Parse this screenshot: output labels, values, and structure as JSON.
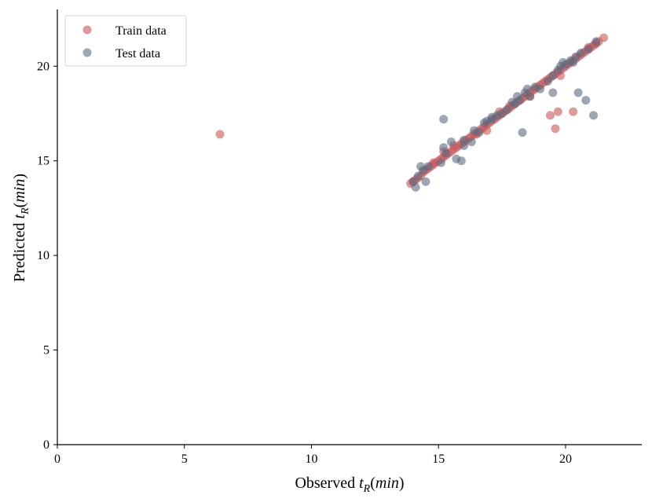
{
  "chart_data": {
    "type": "scatter",
    "xlabel": "Observed t_R(min)",
    "ylabel": "Predicted t_R(min)",
    "xlim": [
      0,
      23
    ],
    "ylim": [
      0,
      23
    ],
    "xticks": [
      0,
      5,
      10,
      15,
      20
    ],
    "yticks": [
      0,
      5,
      10,
      15,
      20
    ],
    "grid": false,
    "legend": "top-left",
    "series": [
      {
        "name": "Train data",
        "color": "#c9565a",
        "points": [
          [
            6.4,
            16.4
          ],
          [
            13.9,
            13.8
          ],
          [
            14.0,
            13.9
          ],
          [
            14.1,
            14.0
          ],
          [
            14.2,
            14.1
          ],
          [
            14.3,
            14.2
          ],
          [
            14.4,
            14.4
          ],
          [
            14.5,
            14.5
          ],
          [
            14.6,
            14.6
          ],
          [
            14.7,
            14.7
          ],
          [
            14.8,
            14.8
          ],
          [
            14.9,
            14.9
          ],
          [
            15.0,
            15.0
          ],
          [
            15.1,
            15.1
          ],
          [
            15.2,
            15.2
          ],
          [
            15.3,
            15.3
          ],
          [
            15.4,
            15.4
          ],
          [
            15.5,
            15.5
          ],
          [
            15.6,
            15.6
          ],
          [
            15.7,
            15.7
          ],
          [
            15.8,
            15.8
          ],
          [
            15.9,
            15.9
          ],
          [
            16.0,
            16.0
          ],
          [
            16.1,
            16.1
          ],
          [
            16.2,
            16.2
          ],
          [
            16.3,
            16.3
          ],
          [
            16.4,
            16.4
          ],
          [
            16.5,
            16.5
          ],
          [
            16.6,
            16.6
          ],
          [
            16.7,
            16.7
          ],
          [
            16.8,
            16.8
          ],
          [
            16.9,
            16.9
          ],
          [
            17.0,
            17.0
          ],
          [
            17.1,
            17.1
          ],
          [
            17.2,
            17.2
          ],
          [
            17.3,
            17.3
          ],
          [
            17.4,
            17.4
          ],
          [
            17.5,
            17.5
          ],
          [
            17.6,
            17.6
          ],
          [
            17.7,
            17.7
          ],
          [
            17.8,
            17.8
          ],
          [
            17.9,
            17.9
          ],
          [
            18.0,
            18.0
          ],
          [
            18.1,
            18.1
          ],
          [
            18.2,
            18.2
          ],
          [
            18.3,
            18.3
          ],
          [
            18.4,
            18.4
          ],
          [
            18.5,
            18.5
          ],
          [
            18.6,
            18.6
          ],
          [
            18.7,
            18.7
          ],
          [
            18.8,
            18.8
          ],
          [
            18.9,
            18.9
          ],
          [
            19.0,
            19.0
          ],
          [
            19.1,
            19.1
          ],
          [
            19.2,
            19.2
          ],
          [
            19.3,
            19.3
          ],
          [
            19.4,
            19.4
          ],
          [
            19.5,
            19.5
          ],
          [
            19.6,
            19.6
          ],
          [
            19.7,
            19.7
          ],
          [
            19.8,
            19.8
          ],
          [
            19.9,
            19.9
          ],
          [
            20.0,
            20.0
          ],
          [
            20.1,
            20.1
          ],
          [
            20.2,
            20.2
          ],
          [
            20.3,
            20.3
          ],
          [
            20.4,
            20.4
          ],
          [
            20.5,
            20.5
          ],
          [
            20.6,
            20.6
          ],
          [
            20.7,
            20.7
          ],
          [
            20.8,
            20.8
          ],
          [
            20.9,
            20.9
          ],
          [
            21.0,
            21.0
          ],
          [
            21.1,
            21.1
          ],
          [
            21.2,
            21.2
          ],
          [
            21.3,
            21.3
          ],
          [
            21.5,
            21.5
          ],
          [
            16.9,
            16.6
          ],
          [
            15.6,
            15.8
          ],
          [
            17.8,
            17.9
          ],
          [
            19.8,
            19.5
          ],
          [
            19.4,
            17.4
          ],
          [
            19.6,
            16.7
          ],
          [
            19.7,
            17.6
          ],
          [
            20.3,
            17.6
          ],
          [
            18.6,
            18.4
          ],
          [
            14.8,
            14.9
          ],
          [
            15.2,
            15.5
          ],
          [
            16.5,
            16.4
          ],
          [
            17.4,
            17.6
          ],
          [
            20.9,
            21.0
          ],
          [
            21.2,
            21.2
          ]
        ]
      },
      {
        "name": "Test data",
        "color": "#5c6b7e",
        "points": [
          [
            14.0,
            13.9
          ],
          [
            14.1,
            13.6
          ],
          [
            14.2,
            14.2
          ],
          [
            14.3,
            14.7
          ],
          [
            14.4,
            14.5
          ],
          [
            14.5,
            13.9
          ],
          [
            14.6,
            14.7
          ],
          [
            15.1,
            14.9
          ],
          [
            15.2,
            17.2
          ],
          [
            15.2,
            15.7
          ],
          [
            15.3,
            15.4
          ],
          [
            15.5,
            16.0
          ],
          [
            15.7,
            15.1
          ],
          [
            15.9,
            15.0
          ],
          [
            16.0,
            15.8
          ],
          [
            16.3,
            16.0
          ],
          [
            16.4,
            16.6
          ],
          [
            16.6,
            16.5
          ],
          [
            16.8,
            17.0
          ],
          [
            16.9,
            17.1
          ],
          [
            17.1,
            17.2
          ],
          [
            17.3,
            17.4
          ],
          [
            17.5,
            17.5
          ],
          [
            17.7,
            17.7
          ],
          [
            17.9,
            18.1
          ],
          [
            18.0,
            18.0
          ],
          [
            18.1,
            18.4
          ],
          [
            18.2,
            18.2
          ],
          [
            18.3,
            16.5
          ],
          [
            18.4,
            18.6
          ],
          [
            18.5,
            18.8
          ],
          [
            18.6,
            18.4
          ],
          [
            18.8,
            18.9
          ],
          [
            19.0,
            18.8
          ],
          [
            19.3,
            19.2
          ],
          [
            19.5,
            18.6
          ],
          [
            19.5,
            19.5
          ],
          [
            19.7,
            19.8
          ],
          [
            19.8,
            20.0
          ],
          [
            19.9,
            20.2
          ],
          [
            20.0,
            20.1
          ],
          [
            20.2,
            20.3
          ],
          [
            20.3,
            20.2
          ],
          [
            20.4,
            20.5
          ],
          [
            20.5,
            18.6
          ],
          [
            20.6,
            20.7
          ],
          [
            20.8,
            18.2
          ],
          [
            20.9,
            20.9
          ],
          [
            21.1,
            17.4
          ],
          [
            21.2,
            21.3
          ],
          [
            17.1,
            17.3
          ],
          [
            16.0,
            16.1
          ]
        ]
      }
    ]
  }
}
